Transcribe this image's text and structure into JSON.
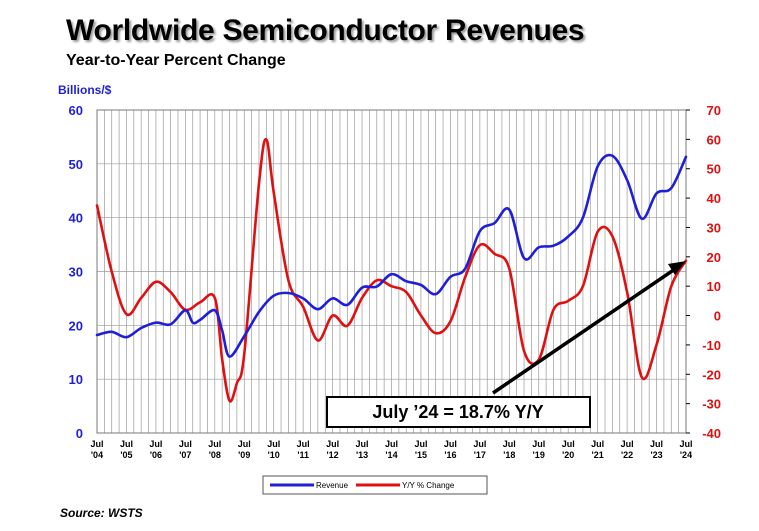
{
  "title": "Worldwide Semiconductor Revenues",
  "subtitle": "Year-to-Year Percent Change",
  "source": "Source: WSTS",
  "annotation": "July ’24 = 18.7% Y/Y",
  "colors": {
    "revenue": "#1f1fd8",
    "yoy": "#e01010",
    "grid": "#9a9a9a",
    "arrow": "#000000"
  },
  "chart_data": {
    "type": "line",
    "left_axis": {
      "label": "Billions/$",
      "ylim": [
        0,
        60
      ],
      "ticks": [
        "0",
        "10",
        "20",
        "30",
        "40",
        "50",
        "60"
      ]
    },
    "right_axis": {
      "label": "",
      "ylim": [
        -40,
        70
      ],
      "ticks": [
        "-40",
        "-30",
        "-20",
        "-10",
        "0",
        "10",
        "20",
        "30",
        "40",
        "50",
        "60",
        "70"
      ]
    },
    "x_ticks": [
      {
        "month": "Jul",
        "year": "'04"
      },
      {
        "month": "Jul",
        "year": "'05"
      },
      {
        "month": "Jul",
        "year": "'06"
      },
      {
        "month": "Jul",
        "year": "'07"
      },
      {
        "month": "Jul",
        "year": "'08"
      },
      {
        "month": "Jul",
        "year": "'09"
      },
      {
        "month": "Jul",
        "year": "'10"
      },
      {
        "month": "Jul",
        "year": "'11"
      },
      {
        "month": "Jul",
        "year": "'12"
      },
      {
        "month": "Jul",
        "year": "'13"
      },
      {
        "month": "Jul",
        "year": "'14"
      },
      {
        "month": "Jul",
        "year": "'15"
      },
      {
        "month": "Jul",
        "year": "'16"
      },
      {
        "month": "Jul",
        "year": "'17"
      },
      {
        "month": "Jul",
        "year": "'18"
      },
      {
        "month": "Jul",
        "year": "'19"
      },
      {
        "month": "Jul",
        "year": "'20"
      },
      {
        "month": "Jul",
        "year": "'21"
      },
      {
        "month": "Jul",
        "year": "'22"
      },
      {
        "month": "Jul",
        "year": "'23"
      },
      {
        "month": "Jul",
        "year": "'24"
      }
    ],
    "grid": true,
    "legend_position": "bottom",
    "series": [
      {
        "name": "Revenue",
        "axis": "left",
        "points": [
          [
            "2004-07",
            18.2
          ],
          [
            "2005-01",
            18.8
          ],
          [
            "2005-07",
            17.8
          ],
          [
            "2006-01",
            19.5
          ],
          [
            "2006-07",
            20.5
          ],
          [
            "2007-01",
            20.2
          ],
          [
            "2007-07",
            22.8
          ],
          [
            "2007-10",
            20.5
          ],
          [
            "2008-01",
            21.0
          ],
          [
            "2008-07",
            22.8
          ],
          [
            "2008-10",
            19.0
          ],
          [
            "2009-01",
            14.2
          ],
          [
            "2009-07",
            18.0
          ],
          [
            "2010-01",
            22.5
          ],
          [
            "2010-07",
            25.5
          ],
          [
            "2011-01",
            26.0
          ],
          [
            "2011-07",
            25.0
          ],
          [
            "2012-01",
            23.0
          ],
          [
            "2012-07",
            25.0
          ],
          [
            "2013-01",
            23.8
          ],
          [
            "2013-07",
            27.0
          ],
          [
            "2014-01",
            27.2
          ],
          [
            "2014-07",
            29.5
          ],
          [
            "2015-01",
            28.2
          ],
          [
            "2015-07",
            27.5
          ],
          [
            "2016-01",
            25.8
          ],
          [
            "2016-07",
            29.0
          ],
          [
            "2017-01",
            30.5
          ],
          [
            "2017-07",
            37.5
          ],
          [
            "2018-01",
            39.0
          ],
          [
            "2018-07",
            41.5
          ],
          [
            "2019-01",
            32.5
          ],
          [
            "2019-07",
            34.5
          ],
          [
            "2020-01",
            34.8
          ],
          [
            "2020-07",
            36.5
          ],
          [
            "2021-01",
            40.0
          ],
          [
            "2021-07",
            49.5
          ],
          [
            "2022-01",
            51.5
          ],
          [
            "2022-07",
            47.0
          ],
          [
            "2023-01",
            39.8
          ],
          [
            "2023-07",
            44.5
          ],
          [
            "2024-01",
            45.5
          ],
          [
            "2024-07",
            51.3
          ]
        ]
      },
      {
        "name": "Y/Y % Change",
        "axis": "right",
        "points": [
          [
            "2004-07",
            37.5
          ],
          [
            "2005-01",
            15.0
          ],
          [
            "2005-07",
            0.5
          ],
          [
            "2006-01",
            6.0
          ],
          [
            "2006-07",
            11.5
          ],
          [
            "2007-01",
            8.0
          ],
          [
            "2007-07",
            2.0
          ],
          [
            "2008-01",
            4.5
          ],
          [
            "2008-07",
            6.0
          ],
          [
            "2008-10",
            -15.0
          ],
          [
            "2009-01",
            -29.0
          ],
          [
            "2009-04",
            -23.0
          ],
          [
            "2009-07",
            -13.0
          ],
          [
            "2010-01",
            45.0
          ],
          [
            "2010-04",
            60.0
          ],
          [
            "2010-07",
            42.0
          ],
          [
            "2011-01",
            12.0
          ],
          [
            "2011-07",
            3.0
          ],
          [
            "2012-01",
            -8.5
          ],
          [
            "2012-07",
            0.0
          ],
          [
            "2013-01",
            -3.5
          ],
          [
            "2013-07",
            6.0
          ],
          [
            "2014-01",
            12.0
          ],
          [
            "2014-07",
            10.0
          ],
          [
            "2015-01",
            8.0
          ],
          [
            "2015-07",
            0.0
          ],
          [
            "2016-01",
            -6.0
          ],
          [
            "2016-07",
            -2.0
          ],
          [
            "2017-01",
            13.0
          ],
          [
            "2017-07",
            24.0
          ],
          [
            "2018-01",
            21.0
          ],
          [
            "2018-07",
            16.0
          ],
          [
            "2019-01",
            -12.0
          ],
          [
            "2019-07",
            -15.0
          ],
          [
            "2020-01",
            2.0
          ],
          [
            "2020-07",
            5.0
          ],
          [
            "2021-01",
            10.0
          ],
          [
            "2021-07",
            28.5
          ],
          [
            "2022-01",
            27.0
          ],
          [
            "2022-07",
            8.0
          ],
          [
            "2023-01",
            -21.0
          ],
          [
            "2023-07",
            -10.0
          ],
          [
            "2024-01",
            10.0
          ],
          [
            "2024-07",
            18.7
          ]
        ]
      }
    ]
  }
}
